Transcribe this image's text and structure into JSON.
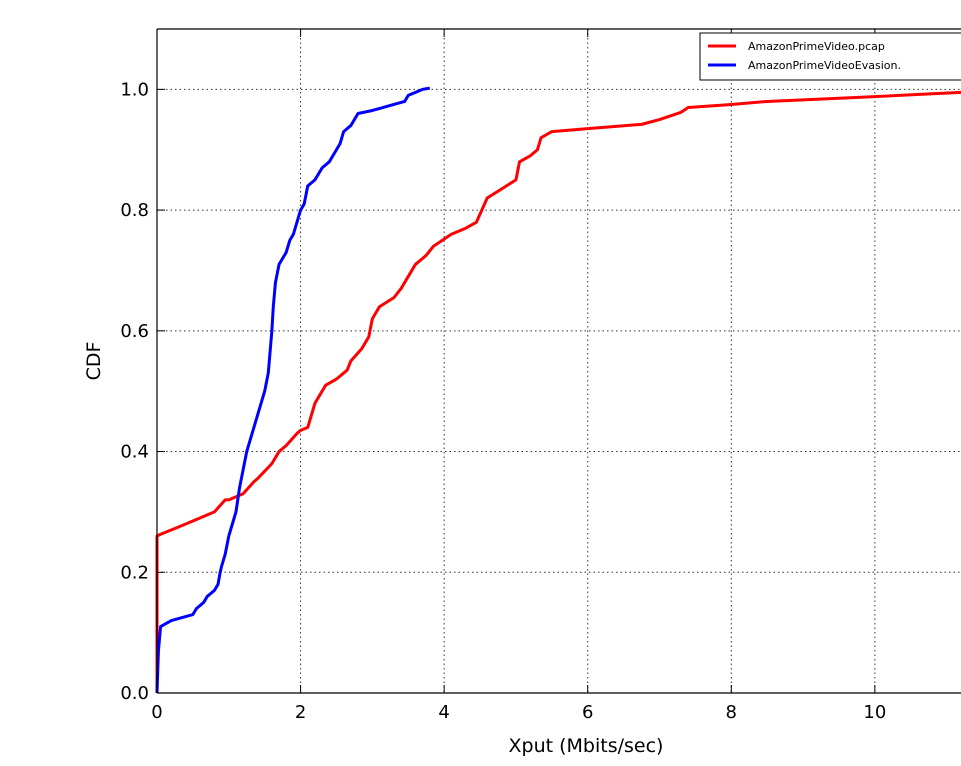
{
  "chart_data": {
    "type": "line",
    "title": "",
    "xlabel": "Xput (Mbits/sec)",
    "ylabel": "CDF",
    "xlim": [
      0,
      11.2
    ],
    "ylim": [
      0,
      1.1
    ],
    "xticks": [
      0,
      2,
      4,
      6,
      8,
      10
    ],
    "xtick_labels": [
      "0",
      "2",
      "4",
      "6",
      "8",
      "10"
    ],
    "yticks": [
      0.0,
      0.2,
      0.4,
      0.6,
      0.8,
      1.0
    ],
    "ytick_labels": [
      "0.0",
      "0.2",
      "0.4",
      "0.6",
      "0.8",
      "1.0"
    ],
    "grid": true,
    "legend_position": "top-right",
    "series": [
      {
        "name": "AmazonPrimeVideo.pcap",
        "color": "#ff0000",
        "x": [
          0.0,
          0.0,
          0.05,
          0.3,
          0.5,
          0.8,
          0.95,
          1.0,
          1.2,
          1.35,
          1.4,
          1.6,
          1.7,
          1.8,
          1.95,
          2.0,
          2.1,
          2.2,
          2.3,
          2.35,
          2.5,
          2.65,
          2.7,
          2.85,
          2.95,
          3.0,
          3.1,
          3.3,
          3.4,
          3.55,
          3.6,
          3.75,
          3.85,
          4.1,
          4.3,
          4.45,
          4.6,
          4.8,
          5.0,
          5.05,
          5.2,
          5.3,
          5.35,
          5.5,
          6.0,
          6.75,
          7.0,
          7.3,
          7.4,
          8.0,
          8.5,
          10.0,
          11.2
        ],
        "y": [
          0.0,
          0.26,
          0.263,
          0.275,
          0.285,
          0.3,
          0.32,
          0.32,
          0.33,
          0.35,
          0.355,
          0.38,
          0.4,
          0.41,
          0.43,
          0.435,
          0.44,
          0.48,
          0.5,
          0.51,
          0.52,
          0.535,
          0.55,
          0.57,
          0.59,
          0.62,
          0.64,
          0.655,
          0.67,
          0.7,
          0.71,
          0.725,
          0.74,
          0.76,
          0.77,
          0.78,
          0.82,
          0.835,
          0.85,
          0.88,
          0.89,
          0.9,
          0.92,
          0.93,
          0.935,
          0.942,
          0.95,
          0.962,
          0.97,
          0.975,
          0.98,
          0.988,
          0.995
        ]
      },
      {
        "name": "AmazonPrimeVideoEvasion.",
        "color": "#0000ff",
        "x": [
          0.0,
          0.02,
          0.05,
          0.2,
          0.5,
          0.55,
          0.65,
          0.7,
          0.8,
          0.85,
          0.88,
          0.9,
          0.95,
          1.0,
          1.05,
          1.1,
          1.15,
          1.2,
          1.25,
          1.3,
          1.4,
          1.45,
          1.5,
          1.55,
          1.6,
          1.62,
          1.65,
          1.7,
          1.75,
          1.8,
          1.85,
          1.9,
          1.95,
          2.0,
          2.05,
          2.1,
          2.2,
          2.3,
          2.4,
          2.5,
          2.55,
          2.6,
          2.7,
          2.8,
          3.0,
          3.3,
          3.45,
          3.5,
          3.6,
          3.7,
          3.8
        ],
        "y": [
          0.0,
          0.07,
          0.11,
          0.12,
          0.13,
          0.14,
          0.15,
          0.16,
          0.17,
          0.18,
          0.2,
          0.21,
          0.23,
          0.26,
          0.28,
          0.3,
          0.34,
          0.37,
          0.4,
          0.42,
          0.46,
          0.48,
          0.5,
          0.53,
          0.6,
          0.64,
          0.68,
          0.71,
          0.72,
          0.73,
          0.75,
          0.76,
          0.78,
          0.8,
          0.81,
          0.84,
          0.85,
          0.87,
          0.88,
          0.9,
          0.91,
          0.93,
          0.94,
          0.96,
          0.965,
          0.975,
          0.98,
          0.99,
          0.995,
          1.0,
          1.002
        ]
      }
    ]
  }
}
